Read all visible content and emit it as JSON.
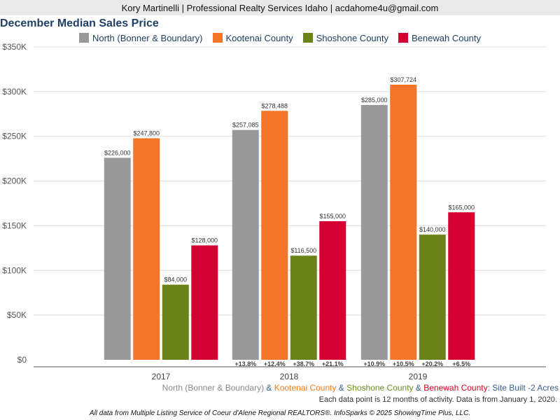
{
  "header": {
    "contact": "Kory Martinelli | Professional Realty Services Idaho | acdahome4u@gmail.com"
  },
  "subtitle_parts": [
    {
      "text": "North (Bonner & Boundary)",
      "color": "#8a8a8a"
    },
    {
      "text": " & ",
      "color": "#3a5f8a"
    },
    {
      "text": "Kootenai County",
      "color": "#f47b20"
    },
    {
      "text": " & ",
      "color": "#3a5f8a"
    },
    {
      "text": "Shoshone County",
      "color": "#6b8e23"
    },
    {
      "text": " & ",
      "color": "#3a5f8a"
    },
    {
      "text": "Benewah County",
      "color": "#d6001c"
    },
    {
      "text": ": Site Built -2 Acres",
      "color": "#3a5f8a"
    }
  ],
  "note": "Each data point is 12 months of activity. Data is from January 1, 2020.",
  "footer": "All data from Multiple Listing Service of Coeur d'Alene Regional REALTORS®. InfoSparks © 2025 ShowingTime Plus, LLC.",
  "chart_data": {
    "type": "bar",
    "title": "December Median Sales Price",
    "categories": [
      "2017",
      "2018",
      "2019"
    ],
    "series": [
      {
        "name": "North (Bonner & Boundary)",
        "color": "#999999",
        "values": [
          226000,
          257085,
          285000
        ],
        "labels": [
          "$226,000",
          "$257,085",
          "$285,000"
        ],
        "changes": [
          "",
          "+13.8%",
          "+10.9%"
        ]
      },
      {
        "name": "Kootenai County",
        "color": "#f47428",
        "values": [
          247800,
          278488,
          307724
        ],
        "labels": [
          "$247,800",
          "$278,488",
          "$307,724"
        ],
        "changes": [
          "",
          "+12.4%",
          "+10.5%"
        ]
      },
      {
        "name": "Shoshone County",
        "color": "#6a8318",
        "values": [
          84000,
          116500,
          140000
        ],
        "labels": [
          "$84,000",
          "$116,500",
          "$140,000"
        ],
        "changes": [
          "",
          "+38.7%",
          "+20.2%"
        ]
      },
      {
        "name": "Benewah County",
        "color": "#d40032",
        "values": [
          128000,
          155000,
          165000
        ],
        "labels": [
          "$128,000",
          "$155,000",
          "$165,000"
        ],
        "changes": [
          "",
          "+21.1%",
          "+6.5%"
        ]
      }
    ],
    "ylim": [
      0,
      350000
    ],
    "yticks": [
      0,
      50000,
      100000,
      150000,
      200000,
      250000,
      300000,
      350000
    ],
    "ytick_labels": [
      "$0",
      "$50K",
      "$100K",
      "$150K",
      "$200K",
      "$250K",
      "$300K",
      "$350K"
    ],
    "grid": true,
    "legend_position": "top-center"
  }
}
